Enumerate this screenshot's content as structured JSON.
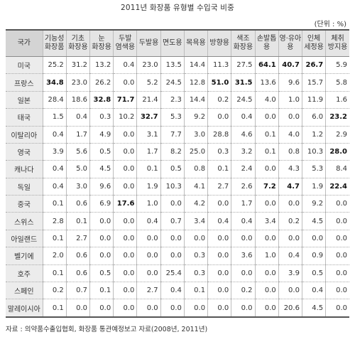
{
  "title": "2011년 화장품 유형별 수입국 비중",
  "unit": "(단위 : %)",
  "headers": [
    "국가",
    "기능성\n화장품",
    "기초\n화장용",
    "눈\n화장용",
    "두발\n염색용",
    "두발용",
    "면도용",
    "목욕용",
    "방향용",
    "색조\n화장용",
    "손발톱\n용",
    "영·유아\n용",
    "인체\n세정용",
    "체취\n방지용"
  ],
  "rows": [
    {
      "country": "미국",
      "values": [
        "25.2",
        "31.2",
        "13.2",
        "0.4",
        "23.0",
        "13.5",
        "14.4",
        "11.3",
        "27.5",
        "64.1",
        "40.7",
        "26.7",
        "5.9"
      ],
      "bold": [
        9,
        10,
        11
      ]
    },
    {
      "country": "프랑스",
      "values": [
        "34.8",
        "23.0",
        "26.2",
        "0.0",
        "5.2",
        "24.5",
        "12.8",
        "51.0",
        "31.5",
        "13.6",
        "9.6",
        "15.7",
        "5.8"
      ],
      "bold": [
        0,
        7,
        8
      ]
    },
    {
      "country": "일본",
      "values": [
        "28.4",
        "18.6",
        "32.8",
        "71.7",
        "21.4",
        "2.3",
        "14.4",
        "0.2",
        "24.5",
        "4.0",
        "1.0",
        "11.9",
        "1.6"
      ],
      "bold": [
        2,
        3
      ]
    },
    {
      "country": "태국",
      "values": [
        "1.5",
        "0.4",
        "0.3",
        "10.2",
        "32.7",
        "5.3",
        "9.2",
        "0.0",
        "0.4",
        "0.0",
        "0.0",
        "6.0",
        "23.2"
      ],
      "bold": [
        4,
        12
      ]
    },
    {
      "country": "이탈리아",
      "values": [
        "0.4",
        "1.7",
        "4.9",
        "0.0",
        "3.1",
        "7.7",
        "3.0",
        "28.8",
        "4.6",
        "0.1",
        "4.0",
        "1.2",
        "2.9"
      ],
      "bold": []
    },
    {
      "country": "영국",
      "values": [
        "3.9",
        "5.6",
        "0.5",
        "0.0",
        "1.7",
        "8.2",
        "25.0",
        "0.3",
        "3.2",
        "0.1",
        "0.8",
        "10.3",
        "28.0"
      ],
      "bold": [
        12
      ]
    },
    {
      "country": "캐나다",
      "values": [
        "0.4",
        "5.0",
        "4.5",
        "0.0",
        "0.1",
        "0.5",
        "0.8",
        "0.1",
        "2.4",
        "0.0",
        "4.3",
        "5.3",
        "8.4"
      ],
      "bold": []
    },
    {
      "country": "독일",
      "values": [
        "0.4",
        "3.0",
        "9.6",
        "0.0",
        "1.9",
        "10.3",
        "4.1",
        "2.7",
        "2.6",
        "7.2",
        "4.7",
        "1.9",
        "22.4"
      ],
      "bold": [
        9,
        10,
        12
      ]
    },
    {
      "country": "중국",
      "values": [
        "0.1",
        "0.6",
        "6.9",
        "17.6",
        "1.0",
        "0.0",
        "4.2",
        "0.0",
        "1.7",
        "0.0",
        "0.0",
        "9.2",
        "0.0"
      ],
      "bold": [
        3
      ]
    },
    {
      "country": "스위스",
      "values": [
        "2.8",
        "0.1",
        "0.0",
        "0.0",
        "0.4",
        "0.7",
        "3.4",
        "0.4",
        "0.4",
        "3.4",
        "0.2",
        "4.5",
        "0.0"
      ],
      "bold": []
    },
    {
      "country": "아일랜드",
      "values": [
        "0.1",
        "2.7",
        "0.0",
        "0.0",
        "0.0",
        "0.0",
        "0.0",
        "0.0",
        "0.0",
        "0.0",
        "0.0",
        "0.0",
        "0.0"
      ],
      "bold": []
    },
    {
      "country": "벨기에",
      "values": [
        "2.0",
        "0.6",
        "0.0",
        "0.0",
        "0.0",
        "0.0",
        "0.3",
        "0.0",
        "3.6",
        "1.0",
        "0.4",
        "0.9",
        "0.0"
      ],
      "bold": []
    },
    {
      "country": "호주",
      "values": [
        "0.1",
        "0.6",
        "0.5",
        "0.0",
        "0.0",
        "25.4",
        "0.3",
        "0.0",
        "0.0",
        "0.0",
        "3.9",
        "0.5",
        "0.0"
      ],
      "bold": []
    },
    {
      "country": "스페인",
      "values": [
        "0.2",
        "0.7",
        "0.1",
        "0.0",
        "2.7",
        "0.4",
        "0.1",
        "0.0",
        "0.2",
        "0.0",
        "0.0",
        "0.4",
        "0.0"
      ],
      "bold": []
    },
    {
      "country": "말레이시아",
      "values": [
        "0.1",
        "0.0",
        "0.0",
        "0.0",
        "0.0",
        "0.0",
        "0.0",
        "0.0",
        "0.0",
        "0.0",
        "20.6",
        "4.5",
        "0.0"
      ],
      "bold": []
    }
  ],
  "source": "자료 : 의약품수출입협회, 화장품 통관예정보고 자료(2008년, 2011년)"
}
